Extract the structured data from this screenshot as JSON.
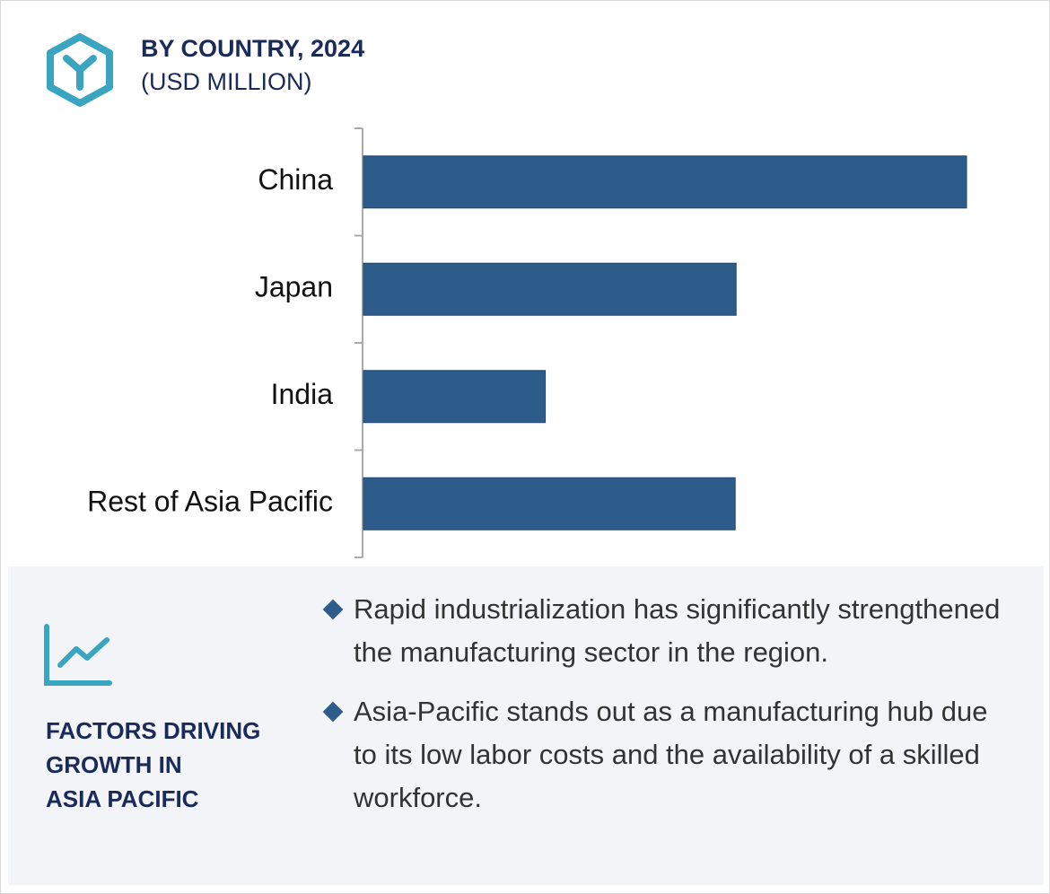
{
  "chart_data": {
    "type": "bar",
    "orientation": "horizontal",
    "title": "BY COUNTRY, 2024",
    "subtitle": "(USD MILLION)",
    "categories": [
      "China",
      "Japan",
      "India",
      "Rest of Asia Pacific"
    ],
    "values": [
      670,
      414,
      202,
      413
    ],
    "color": "#2d5b8a"
  },
  "factors": {
    "title_lines": [
      "FACTORS DRIVING",
      "GROWTH IN",
      "ASIA PACIFIC"
    ],
    "bullets": [
      "Rapid industrialization has significantly strengthened the manufacturing sector in the region.",
      "Asia-Pacific stands out as a manufacturing hub due to its low labor costs and the availability of a skilled workforce."
    ]
  }
}
